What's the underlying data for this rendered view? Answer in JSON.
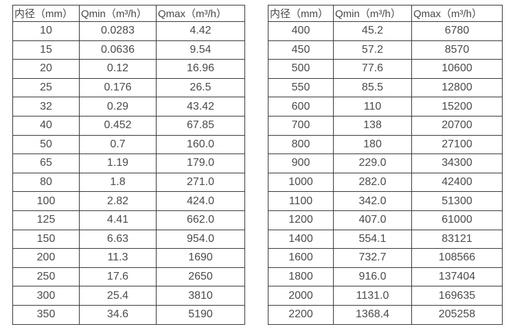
{
  "tables": [
    {
      "name": "small-diameter-flow-table",
      "headers": [
        "内径（mm）",
        "Qmin（m³/h）",
        "Qmax（m³/h）"
      ],
      "rows": [
        [
          "10",
          "0.0283",
          "4.42"
        ],
        [
          "15",
          "0.0636",
          "9.54"
        ],
        [
          "20",
          "0.12",
          "16.96"
        ],
        [
          "25",
          "0.176",
          "26.5"
        ],
        [
          "32",
          "0.29",
          "43.42"
        ],
        [
          "40",
          "0.452",
          "67.85"
        ],
        [
          "50",
          "0.7",
          "160.0"
        ],
        [
          "65",
          "1.19",
          "179.0"
        ],
        [
          "80",
          "1.8",
          "271.0"
        ],
        [
          "100",
          "2.82",
          "424.0"
        ],
        [
          "125",
          "4.41",
          "662.0"
        ],
        [
          "150",
          "6.63",
          "954.0"
        ],
        [
          "200",
          "11.3",
          "1690"
        ],
        [
          "250",
          "17.6",
          "2650"
        ],
        [
          "300",
          "25.4",
          "3810"
        ],
        [
          "350",
          "34.6",
          "5190"
        ]
      ]
    },
    {
      "name": "large-diameter-flow-table",
      "headers": [
        "内径（mm）",
        "Qmin（m³/h）",
        "Qmax（m³/h）"
      ],
      "rows": [
        [
          "400",
          "45.2",
          "6780"
        ],
        [
          "450",
          "57.2",
          "8570"
        ],
        [
          "500",
          "77.6",
          "10600"
        ],
        [
          "550",
          "85.5",
          "12800"
        ],
        [
          "600",
          "110",
          "15200"
        ],
        [
          "700",
          "138",
          "20700"
        ],
        [
          "800",
          "180",
          "27100"
        ],
        [
          "900",
          "229.0",
          "34300"
        ],
        [
          "1000",
          "282.0",
          "42400"
        ],
        [
          "1100",
          "342.0",
          "51300"
        ],
        [
          "1200",
          "407.0",
          "61000"
        ],
        [
          "1400",
          "554.1",
          "83121"
        ],
        [
          "1600",
          "732.7",
          "108566"
        ],
        [
          "1800",
          "916.0",
          "137404"
        ],
        [
          "2000",
          "1131.0",
          "169635"
        ],
        [
          "2200",
          "1368.4",
          "205258"
        ]
      ]
    }
  ],
  "colors": {
    "border": "#383838",
    "text": "#4a4a4a",
    "background": "#ffffff"
  }
}
